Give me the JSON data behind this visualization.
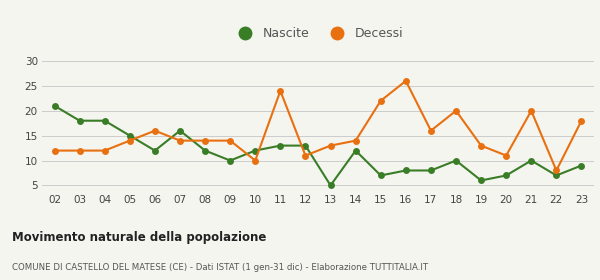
{
  "years": [
    "02",
    "03",
    "04",
    "05",
    "06",
    "07",
    "08",
    "09",
    "10",
    "11",
    "12",
    "13",
    "14",
    "15",
    "16",
    "17",
    "18",
    "19",
    "20",
    "21",
    "22",
    "23"
  ],
  "nascite": [
    21,
    18,
    18,
    15,
    12,
    16,
    12,
    10,
    12,
    13,
    13,
    5,
    12,
    7,
    8,
    8,
    10,
    6,
    7,
    10,
    7,
    9
  ],
  "decessi": [
    12,
    12,
    12,
    14,
    16,
    14,
    14,
    14,
    10,
    24,
    11,
    13,
    14,
    22,
    26,
    16,
    20,
    13,
    11,
    20,
    8,
    18
  ],
  "nascite_color": "#3a7d27",
  "decessi_color": "#e87010",
  "bg_color": "#f5f5f0",
  "grid_color": "#cccccc",
  "title": "Movimento naturale della popolazione",
  "subtitle": "COMUNE DI CASTELLO DEL MATESE (CE) - Dati ISTAT (1 gen-31 dic) - Elaborazione TUTTITALIA.IT",
  "ylim": [
    4,
    31
  ],
  "yticks": [
    5,
    10,
    15,
    20,
    25,
    30
  ],
  "legend_nascite": "Nascite",
  "legend_decessi": "Decessi",
  "marker_size": 5,
  "line_width": 1.5
}
